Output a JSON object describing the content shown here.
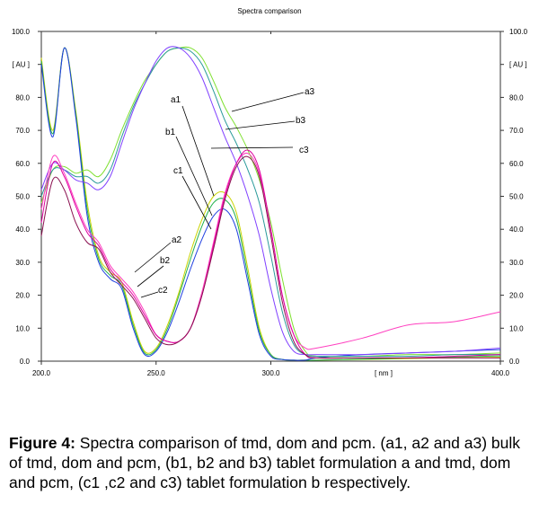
{
  "chart_data": {
    "type": "line",
    "title": "Spectra comparison",
    "xlabel": "[ nm ]",
    "ylabel": "[ AU ]",
    "xlim": [
      200,
      400
    ],
    "ylim": [
      0,
      100
    ],
    "x_ticks": [
      "200.0",
      "250.0",
      "300.0",
      "400.0"
    ],
    "y_ticks": [
      "100.0",
      "80.0",
      "70.0",
      "60.0",
      "50.0",
      "40.0",
      "30.0",
      "20.0",
      "10.0",
      "0.0"
    ],
    "grid": false,
    "x": [
      200,
      205,
      210,
      215,
      220,
      225,
      230,
      235,
      240,
      245,
      250,
      255,
      260,
      265,
      270,
      275,
      280,
      285,
      290,
      295,
      300,
      305,
      310,
      315,
      320,
      340,
      360,
      380,
      400
    ],
    "series": [
      {
        "name": "a1",
        "color": "#c8d400",
        "values": [
          92,
          70,
          95,
          76,
          48,
          32,
          27,
          24,
          12,
          3,
          4,
          11,
          21,
          33,
          43,
          50,
          51,
          45,
          28,
          10,
          2,
          0.5,
          0.3,
          0.3,
          0.3,
          0.5,
          0.8,
          1,
          1.2
        ]
      },
      {
        "name": "b1",
        "color": "#22b14c",
        "values": [
          91,
          69,
          95,
          75,
          46,
          31,
          26,
          23,
          11,
          2.5,
          3.5,
          10,
          20,
          31,
          41,
          48,
          49,
          43,
          26,
          9,
          2,
          0.5,
          0.3,
          0.3,
          0.3,
          0.6,
          1,
          1.3,
          1.6
        ]
      },
      {
        "name": "c1",
        "color": "#2040e0",
        "values": [
          90,
          68,
          95,
          74,
          44,
          30,
          25,
          22,
          10,
          2,
          3,
          9,
          18,
          28,
          37,
          44,
          46,
          40,
          24,
          8,
          1.5,
          0.5,
          0.3,
          0.3,
          1,
          2,
          2.5,
          3,
          3.5
        ]
      },
      {
        "name": "a3",
        "color": "#7fe030",
        "values": [
          48,
          58,
          59,
          57,
          58,
          56,
          61,
          70,
          78,
          85,
          90,
          94,
          95,
          95,
          92,
          85,
          77,
          71,
          64,
          55,
          42,
          25,
          10,
          3,
          1.5,
          1.5,
          2,
          2,
          2.5
        ]
      },
      {
        "name": "b3",
        "color": "#2a9a9a",
        "values": [
          50,
          58,
          58,
          56,
          56,
          54,
          58,
          68,
          77,
          84,
          90,
          94,
          95,
          94,
          90,
          82,
          73,
          66,
          58,
          48,
          32,
          15,
          5,
          2,
          1.5,
          1.5,
          1.5,
          2,
          2
        ]
      },
      {
        "name": "c3",
        "color": "#8040ff",
        "values": [
          52,
          60,
          58,
          55,
          54,
          52,
          56,
          66,
          76,
          84,
          91,
          95,
          95,
          92,
          86,
          77,
          68,
          60,
          50,
          38,
          22,
          9,
          3,
          2,
          2,
          2,
          2.5,
          3,
          4
        ]
      },
      {
        "name": "a2",
        "color": "#ff40c0",
        "values": [
          46,
          62,
          57,
          48,
          40,
          36,
          29,
          25,
          21,
          15,
          8,
          6,
          6,
          10,
          21,
          36,
          51,
          60,
          63,
          57,
          40,
          20,
          8,
          4,
          4,
          7,
          11,
          12,
          15
        ]
      },
      {
        "name": "b2",
        "color": "#e000a0",
        "values": [
          42,
          60,
          56,
          47,
          39,
          35,
          28,
          24,
          20,
          14,
          8,
          6,
          6,
          10,
          20,
          35,
          50,
          60,
          64,
          58,
          40,
          20,
          8,
          2,
          1,
          1,
          1,
          1.5,
          2
        ]
      },
      {
        "name": "c2",
        "color": "#8a1050",
        "values": [
          38,
          55,
          52,
          42,
          36,
          34,
          27,
          23,
          19,
          13,
          7,
          5,
          6,
          10,
          20,
          34,
          49,
          59,
          62,
          56,
          38,
          18,
          6,
          2,
          1,
          1,
          1,
          1,
          1
        ]
      }
    ],
    "annotations": [
      "a1",
      "b1",
      "c1",
      "a2",
      "b2",
      "c2",
      "a3",
      "b3",
      "c3"
    ]
  },
  "caption": {
    "label": "Figure 4:",
    "text": " Spectra comparison of tmd, dom and pcm. (a1, a2 and a3) bulk of tmd, dom and pcm, (b1, b2 and b3) tablet formulation a and tmd, dom and pcm, (c1 ,c2 and c3) tablet formulation b respectively."
  }
}
